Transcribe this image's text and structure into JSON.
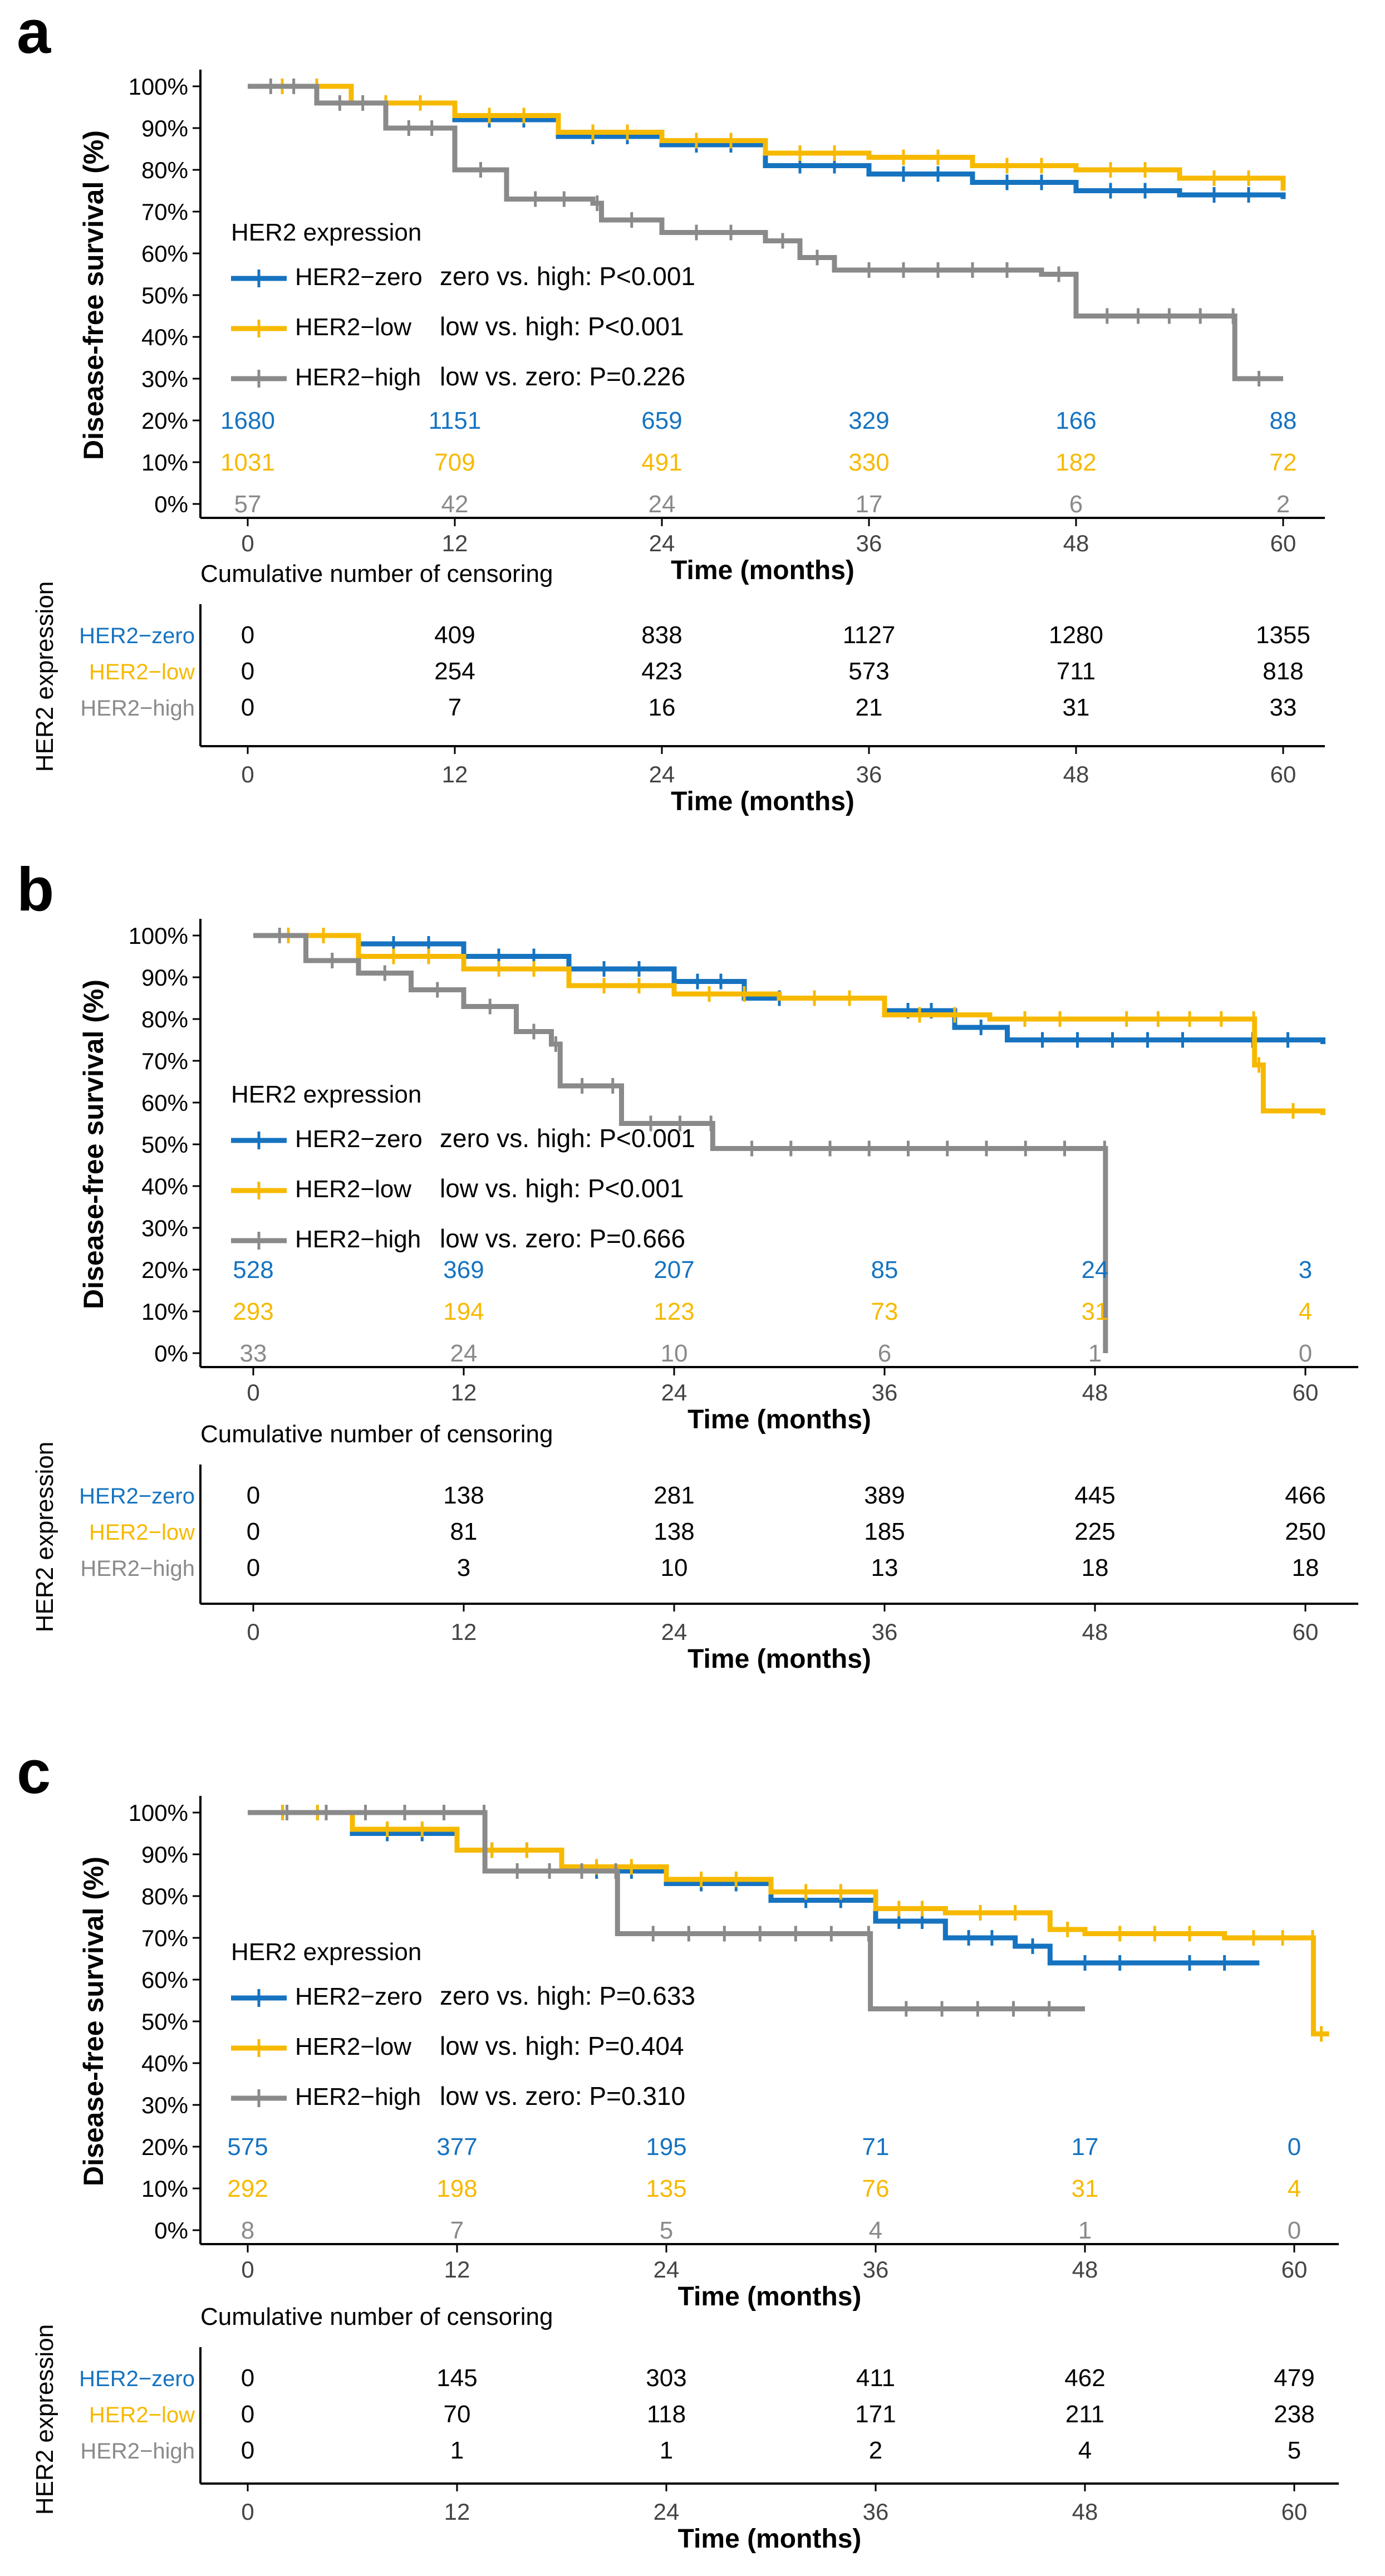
{
  "colors": {
    "zero": "#1673c0",
    "low": "#f7b900",
    "high": "#8a8a8a",
    "axis": "#000000"
  },
  "shared": {
    "y_axis_label": "Disease-free survival (%)",
    "x_axis_label": "Time (months)",
    "y_ticks": [
      "100%",
      "90%",
      "80%",
      "70%",
      "60%",
      "50%",
      "40%",
      "30%",
      "20%",
      "10%",
      "0%"
    ],
    "x_ticks": [
      "0",
      "12",
      "24",
      "36",
      "48",
      "60"
    ],
    "legend_title": "HER2 expression",
    "censor_title": "Cumulative number of censoring",
    "censor_axis_label": "HER2 expression",
    "group_labels": [
      "HER2−zero",
      "HER2−low",
      "HER2−high"
    ],
    "series_names": [
      "HER2−zero",
      "HER2−low",
      "HER2−high"
    ]
  },
  "chart_data": [
    {
      "panel": "a",
      "type": "line",
      "title": "a",
      "xlabel": "Time (months)",
      "ylabel": "Disease-free survival (%)",
      "xlim": [
        0,
        60
      ],
      "ylim": [
        0,
        100
      ],
      "series": [
        {
          "name": "HER2−zero",
          "group": "zero",
          "points": [
            [
              0,
              100
            ],
            [
              6,
              96
            ],
            [
              12,
              92
            ],
            [
              18,
              88
            ],
            [
              24,
              86
            ],
            [
              30,
              81
            ],
            [
              36,
              79
            ],
            [
              42,
              77
            ],
            [
              48,
              75
            ],
            [
              54,
              74
            ],
            [
              60,
              73
            ]
          ]
        },
        {
          "name": "HER2−low",
          "group": "low",
          "points": [
            [
              0,
              100
            ],
            [
              6,
              96
            ],
            [
              12,
              93
            ],
            [
              18,
              89
            ],
            [
              24,
              87
            ],
            [
              30,
              84
            ],
            [
              36,
              83
            ],
            [
              42,
              81
            ],
            [
              48,
              80
            ],
            [
              54,
              78
            ],
            [
              60,
              75
            ]
          ]
        },
        {
          "name": "HER2−high",
          "group": "high",
          "points": [
            [
              0,
              100
            ],
            [
              4,
              96
            ],
            [
              8,
              90
            ],
            [
              12,
              80
            ],
            [
              15,
              73
            ],
            [
              20,
              72
            ],
            [
              20.5,
              68
            ],
            [
              24,
              65
            ],
            [
              30,
              63
            ],
            [
              32,
              59
            ],
            [
              34,
              56
            ],
            [
              46,
              55
            ],
            [
              48,
              45
            ],
            [
              57,
              45
            ],
            [
              57.2,
              30
            ],
            [
              60,
              30
            ]
          ]
        }
      ],
      "p_values": [
        "zero vs. high: P<0.001",
        "low vs. high: P<0.001",
        "low vs. zero:  P=0.226"
      ],
      "at_risk": {
        "zero": [
          "1680",
          "1151",
          "659",
          "329",
          "166",
          "88"
        ],
        "low": [
          "1031",
          "709",
          "491",
          "330",
          "182",
          "72"
        ],
        "high": [
          "57",
          "42",
          "24",
          "17",
          "6",
          "2"
        ]
      },
      "censoring": {
        "zero": [
          "0",
          "409",
          "838",
          "1127",
          "1280",
          "1355"
        ],
        "low": [
          "0",
          "254",
          "423",
          "573",
          "711",
          "818"
        ],
        "high": [
          "0",
          "7",
          "16",
          "21",
          "31",
          "33"
        ]
      }
    },
    {
      "panel": "b",
      "type": "line",
      "title": "b",
      "xlabel": "Time (months)",
      "ylabel": "Disease-free survival (%)",
      "xlim": [
        0,
        60
      ],
      "ylim": [
        0,
        100
      ],
      "series": [
        {
          "name": "HER2−zero",
          "group": "zero",
          "points": [
            [
              0,
              100
            ],
            [
              6,
              98
            ],
            [
              12,
              95
            ],
            [
              18,
              92
            ],
            [
              24,
              89
            ],
            [
              28,
              85
            ],
            [
              36,
              82
            ],
            [
              40,
              78
            ],
            [
              43,
              75
            ],
            [
              55,
              75
            ],
            [
              61,
              74
            ]
          ]
        },
        {
          "name": "HER2−low",
          "group": "low",
          "points": [
            [
              0,
              100
            ],
            [
              6,
              95
            ],
            [
              12,
              92
            ],
            [
              18,
              88
            ],
            [
              24,
              86
            ],
            [
              30,
              85
            ],
            [
              36,
              81
            ],
            [
              42,
              80
            ],
            [
              48,
              80
            ],
            [
              57,
              80
            ],
            [
              57.1,
              69
            ],
            [
              57.6,
              58
            ],
            [
              61,
              57
            ]
          ]
        },
        {
          "name": "HER2−high",
          "group": "high",
          "points": [
            [
              0,
              100
            ],
            [
              3,
              94
            ],
            [
              6,
              91
            ],
            [
              9,
              87
            ],
            [
              12,
              83
            ],
            [
              15,
              77
            ],
            [
              17,
              74
            ],
            [
              17.5,
              64
            ],
            [
              20,
              64
            ],
            [
              21,
              55
            ],
            [
              26,
              55
            ],
            [
              26.2,
              49
            ],
            [
              48.5,
              49
            ],
            [
              48.6,
              0
            ]
          ]
        }
      ],
      "p_values": [
        "zero vs. high: P<0.001",
        "low   vs. high: P<0.001",
        "low vs. zero:  P=0.666"
      ],
      "at_risk": {
        "zero": [
          "528",
          "369",
          "207",
          "85",
          "24",
          "3"
        ],
        "low": [
          "293",
          "194",
          "123",
          "73",
          "31",
          "4"
        ],
        "high": [
          "33",
          "24",
          "10",
          "6",
          "1",
          "0"
        ]
      },
      "censoring": {
        "zero": [
          "0",
          "138",
          "281",
          "389",
          "445",
          "466"
        ],
        "low": [
          "0",
          "81",
          "138",
          "185",
          "225",
          "250"
        ],
        "high": [
          "0",
          "3",
          "10",
          "13",
          "18",
          "18"
        ]
      }
    },
    {
      "panel": "c",
      "type": "line",
      "title": "c",
      "xlabel": "Time (months)",
      "ylabel": "Disease-free survival (%)",
      "xlim": [
        0,
        60
      ],
      "ylim": [
        0,
        100
      ],
      "series": [
        {
          "name": "HER2−zero",
          "group": "zero",
          "points": [
            [
              0,
              100
            ],
            [
              6,
              95
            ],
            [
              12,
              91
            ],
            [
              18,
              86
            ],
            [
              24,
              83
            ],
            [
              30,
              79
            ],
            [
              36,
              74
            ],
            [
              40,
              70
            ],
            [
              44,
              68
            ],
            [
              46,
              64
            ],
            [
              52,
              64
            ],
            [
              58,
              64
            ]
          ]
        },
        {
          "name": "HER2−low",
          "group": "low",
          "points": [
            [
              0,
              100
            ],
            [
              6,
              96
            ],
            [
              12,
              91
            ],
            [
              18,
              87
            ],
            [
              24,
              84
            ],
            [
              30,
              81
            ],
            [
              36,
              77
            ],
            [
              40,
              76
            ],
            [
              46,
              72
            ],
            [
              48,
              71
            ],
            [
              56,
              70
            ],
            [
              61,
              70
            ],
            [
              61.1,
              47
            ],
            [
              62,
              47
            ]
          ]
        },
        {
          "name": "HER2−high",
          "group": "high",
          "points": [
            [
              0,
              100
            ],
            [
              13.5,
              100
            ],
            [
              13.6,
              86
            ],
            [
              21,
              86
            ],
            [
              21.2,
              71
            ],
            [
              35.5,
              71
            ],
            [
              35.7,
              53
            ],
            [
              48,
              53
            ]
          ]
        }
      ],
      "p_values": [
        "zero vs. high: P=0.633",
        "low vs. high: P=0.404",
        "low vs. zero: P=0.310"
      ],
      "at_risk": {
        "zero": [
          "575",
          "377",
          "195",
          "71",
          "17",
          "0"
        ],
        "low": [
          "292",
          "198",
          "135",
          "76",
          "31",
          "4"
        ],
        "high": [
          "8",
          "7",
          "5",
          "4",
          "1",
          "0"
        ]
      },
      "censoring": {
        "zero": [
          "0",
          "145",
          "303",
          "411",
          "462",
          "479"
        ],
        "low": [
          "0",
          "70",
          "118",
          "171",
          "211",
          "238"
        ],
        "high": [
          "0",
          "1",
          "1",
          "2",
          "4",
          "5"
        ]
      }
    }
  ]
}
